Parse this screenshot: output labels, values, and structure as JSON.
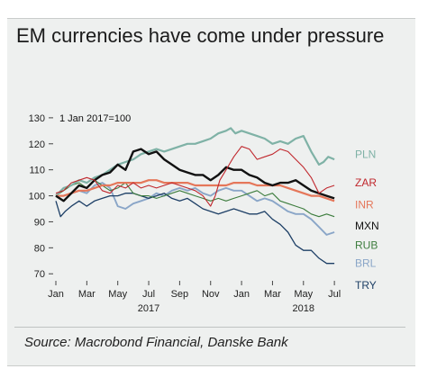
{
  "title": "EM currencies have come under pressure",
  "source": "Source: Macrobond Financial, Danske Bank",
  "chart_data": {
    "type": "line",
    "annotation": "1 Jan 2017=100",
    "x_months": [
      "Jan",
      "Mar",
      "May",
      "Jul",
      "Sep",
      "Nov",
      "Jan",
      "Mar",
      "May",
      "Jul"
    ],
    "x_years": [
      "2017",
      "2018"
    ],
    "y_ticks": [
      70,
      80,
      90,
      100,
      110,
      120,
      130
    ],
    "ylim": [
      68,
      131
    ],
    "xlim": [
      0,
      18.4
    ],
    "grid": false,
    "legend": "direct labels right",
    "series": [
      {
        "name": "PLN",
        "color": "#7fb2a6",
        "width": 2.2,
        "label_y": 116,
        "points": [
          [
            0,
            100
          ],
          [
            0.5,
            103
          ],
          [
            1,
            104
          ],
          [
            1.5,
            106
          ],
          [
            2,
            105
          ],
          [
            2.5,
            107
          ],
          [
            3,
            108
          ],
          [
            3.5,
            110
          ],
          [
            4,
            112
          ],
          [
            4.5,
            113
          ],
          [
            5,
            114
          ],
          [
            5.5,
            116
          ],
          [
            6,
            117
          ],
          [
            6.5,
            118
          ],
          [
            7,
            117
          ],
          [
            7.5,
            118
          ],
          [
            8,
            119
          ],
          [
            8.5,
            120
          ],
          [
            9,
            120
          ],
          [
            9.5,
            121
          ],
          [
            10,
            122
          ],
          [
            10.5,
            124
          ],
          [
            11,
            125
          ],
          [
            11.3,
            126
          ],
          [
            11.6,
            124
          ],
          [
            12,
            125
          ],
          [
            12.5,
            124
          ],
          [
            13,
            123
          ],
          [
            13.5,
            122
          ],
          [
            14,
            120
          ],
          [
            14.5,
            121
          ],
          [
            15,
            120
          ],
          [
            15.5,
            122
          ],
          [
            16,
            123
          ],
          [
            16.5,
            117
          ],
          [
            17,
            112
          ],
          [
            17.3,
            113
          ],
          [
            17.6,
            115
          ],
          [
            18,
            114
          ]
        ]
      },
      {
        "name": "ZAR",
        "color": "#c0272d",
        "width": 1.1,
        "label_y": 105,
        "points": [
          [
            0,
            101
          ],
          [
            0.5,
            102
          ],
          [
            1,
            105
          ],
          [
            1.5,
            106
          ],
          [
            2,
            107
          ],
          [
            2.5,
            106
          ],
          [
            3,
            102
          ],
          [
            3.5,
            101
          ],
          [
            4,
            104
          ],
          [
            4.5,
            103
          ],
          [
            5,
            105
          ],
          [
            5.5,
            103
          ],
          [
            6,
            104
          ],
          [
            6.5,
            103
          ],
          [
            7,
            104
          ],
          [
            7.5,
            105
          ],
          [
            8,
            104
          ],
          [
            8.5,
            103
          ],
          [
            9,
            102
          ],
          [
            9.5,
            100
          ],
          [
            10,
            96
          ],
          [
            10.3,
            100
          ],
          [
            10.6,
            106
          ],
          [
            11,
            110
          ],
          [
            11.5,
            115
          ],
          [
            12,
            119
          ],
          [
            12.5,
            118
          ],
          [
            13,
            114
          ],
          [
            13.5,
            115
          ],
          [
            14,
            116
          ],
          [
            14.5,
            118
          ],
          [
            15,
            117
          ],
          [
            15.5,
            114
          ],
          [
            16,
            111
          ],
          [
            16.5,
            107
          ],
          [
            17,
            101
          ],
          [
            17.5,
            103
          ],
          [
            18,
            104
          ]
        ]
      },
      {
        "name": "INR",
        "color": "#e5775a",
        "width": 2.2,
        "label_y": 96,
        "points": [
          [
            0,
            100
          ],
          [
            0.5,
            100
          ],
          [
            1,
            101
          ],
          [
            1.5,
            102
          ],
          [
            2,
            102
          ],
          [
            2.5,
            103
          ],
          [
            3,
            104
          ],
          [
            3.5,
            104
          ],
          [
            4,
            105
          ],
          [
            4.5,
            105
          ],
          [
            5,
            105
          ],
          [
            5.5,
            105
          ],
          [
            6,
            106
          ],
          [
            6.5,
            106
          ],
          [
            7,
            105
          ],
          [
            7.5,
            105
          ],
          [
            8,
            105
          ],
          [
            8.5,
            105
          ],
          [
            9,
            104
          ],
          [
            9.5,
            104
          ],
          [
            10,
            104
          ],
          [
            10.5,
            104
          ],
          [
            11,
            104
          ],
          [
            11.5,
            105
          ],
          [
            12,
            105
          ],
          [
            12.5,
            105
          ],
          [
            13,
            104
          ],
          [
            13.5,
            104
          ],
          [
            14,
            104
          ],
          [
            14.5,
            104
          ],
          [
            15,
            103
          ],
          [
            15.5,
            102
          ],
          [
            16,
            101
          ],
          [
            16.5,
            100
          ],
          [
            17,
            100
          ],
          [
            17.5,
            99
          ],
          [
            18,
            98
          ]
        ]
      },
      {
        "name": "MXN",
        "color": "#111111",
        "width": 2.4,
        "label_y": 96,
        "points": [
          [
            0,
            100
          ],
          [
            0.5,
            98
          ],
          [
            1,
            101
          ],
          [
            1.5,
            104
          ],
          [
            2,
            103
          ],
          [
            2.5,
            106
          ],
          [
            3,
            108
          ],
          [
            3.5,
            109
          ],
          [
            4,
            112
          ],
          [
            4.5,
            110
          ],
          [
            5,
            117
          ],
          [
            5.5,
            118
          ],
          [
            6,
            116
          ],
          [
            6.5,
            117
          ],
          [
            7,
            114
          ],
          [
            7.5,
            112
          ],
          [
            8,
            110
          ],
          [
            8.5,
            109
          ],
          [
            9,
            108
          ],
          [
            9.5,
            108
          ],
          [
            10,
            106
          ],
          [
            10.5,
            108
          ],
          [
            11,
            111
          ],
          [
            11.5,
            110
          ],
          [
            12,
            110
          ],
          [
            12.5,
            108
          ],
          [
            13,
            107
          ],
          [
            13.5,
            105
          ],
          [
            14,
            104
          ],
          [
            14.5,
            105
          ],
          [
            15,
            105
          ],
          [
            15.5,
            106
          ],
          [
            16,
            104
          ],
          [
            16.5,
            102
          ],
          [
            17,
            101
          ],
          [
            17.5,
            100
          ],
          [
            18,
            99
          ]
        ]
      },
      {
        "name": "RUB",
        "color": "#3d7d3e",
        "width": 1.1,
        "label_y": 89,
        "points": [
          [
            0,
            100
          ],
          [
            0.5,
            102
          ],
          [
            1,
            104
          ],
          [
            1.5,
            105
          ],
          [
            2,
            103
          ],
          [
            2.5,
            106
          ],
          [
            3,
            104
          ],
          [
            3.5,
            102
          ],
          [
            4,
            103
          ],
          [
            4.5,
            105
          ],
          [
            5,
            101
          ],
          [
            5.5,
            100
          ],
          [
            6,
            100
          ],
          [
            6.5,
            99
          ],
          [
            7,
            100
          ],
          [
            7.5,
            101
          ],
          [
            8,
            102
          ],
          [
            8.5,
            101
          ],
          [
            9,
            100
          ],
          [
            9.5,
            99
          ],
          [
            10,
            98
          ],
          [
            10.5,
            99
          ],
          [
            11,
            98
          ],
          [
            11.5,
            99
          ],
          [
            12,
            100
          ],
          [
            12.5,
            101
          ],
          [
            13,
            102
          ],
          [
            13.5,
            100
          ],
          [
            14,
            101
          ],
          [
            14.5,
            98
          ],
          [
            15,
            97
          ],
          [
            15.5,
            96
          ],
          [
            16,
            95
          ],
          [
            16.5,
            93
          ],
          [
            17,
            92
          ],
          [
            17.5,
            93
          ],
          [
            18,
            92
          ]
        ]
      },
      {
        "name": "BRL",
        "color": "#8aa6c8",
        "width": 1.9,
        "label_y": 80,
        "points": [
          [
            0,
            100
          ],
          [
            0.5,
            100
          ],
          [
            1,
            101
          ],
          [
            1.5,
            102
          ],
          [
            2,
            101
          ],
          [
            2.5,
            104
          ],
          [
            3,
            105
          ],
          [
            3.5,
            103
          ],
          [
            4,
            96
          ],
          [
            4.5,
            95
          ],
          [
            5,
            97
          ],
          [
            5.5,
            98
          ],
          [
            6,
            99
          ],
          [
            6.5,
            101
          ],
          [
            7,
            100
          ],
          [
            7.5,
            102
          ],
          [
            8,
            103
          ],
          [
            8.5,
            102
          ],
          [
            9,
            103
          ],
          [
            9.5,
            101
          ],
          [
            10,
            100
          ],
          [
            10.5,
            102
          ],
          [
            11,
            103
          ],
          [
            11.5,
            102
          ],
          [
            12,
            102
          ],
          [
            12.5,
            100
          ],
          [
            13,
            98
          ],
          [
            13.5,
            99
          ],
          [
            14,
            98
          ],
          [
            14.5,
            96
          ],
          [
            15,
            94
          ],
          [
            15.5,
            93
          ],
          [
            16,
            93
          ],
          [
            16.5,
            91
          ],
          [
            17,
            88
          ],
          [
            17.5,
            85
          ],
          [
            18,
            86
          ]
        ]
      },
      {
        "name": "TRY",
        "color": "#1d3f66",
        "width": 1.3,
        "label_y": 70,
        "points": [
          [
            0,
            98
          ],
          [
            0.3,
            92
          ],
          [
            0.6,
            94
          ],
          [
            1,
            96
          ],
          [
            1.5,
            98
          ],
          [
            2,
            96
          ],
          [
            2.5,
            98
          ],
          [
            3,
            99
          ],
          [
            3.5,
            100
          ],
          [
            4,
            100
          ],
          [
            4.5,
            101
          ],
          [
            5,
            101
          ],
          [
            5.5,
            100
          ],
          [
            6,
            99
          ],
          [
            6.5,
            100
          ],
          [
            7,
            101
          ],
          [
            7.5,
            99
          ],
          [
            8,
            98
          ],
          [
            8.5,
            99
          ],
          [
            9,
            97
          ],
          [
            9.5,
            95
          ],
          [
            10,
            94
          ],
          [
            10.5,
            93
          ],
          [
            11,
            94
          ],
          [
            11.5,
            95
          ],
          [
            12,
            94
          ],
          [
            12.5,
            93
          ],
          [
            13,
            93
          ],
          [
            13.5,
            94
          ],
          [
            14,
            91
          ],
          [
            14.5,
            89
          ],
          [
            15,
            86
          ],
          [
            15.5,
            81
          ],
          [
            16,
            79
          ],
          [
            16.5,
            79
          ],
          [
            17,
            76
          ],
          [
            17.5,
            74
          ],
          [
            18,
            74
          ]
        ]
      }
    ]
  }
}
